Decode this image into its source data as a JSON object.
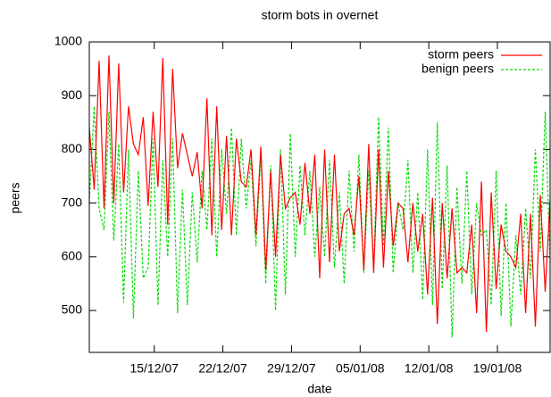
{
  "chart_data": {
    "type": "line",
    "title": "storm bots in overnet",
    "x_label": "date",
    "y_label": "peers",
    "x": [
      0,
      12,
      24,
      36,
      48,
      60,
      72,
      84,
      96,
      108,
      120,
      132,
      144,
      156,
      168,
      180,
      192,
      204,
      216,
      228,
      240,
      252,
      264,
      276,
      288,
      300,
      312,
      324,
      336,
      348,
      360,
      372,
      384,
      396,
      408,
      420,
      432,
      444,
      456,
      468,
      480,
      492,
      504,
      516,
      528,
      540,
      552,
      564,
      576,
      588,
      600,
      612,
      624,
      636,
      648,
      660,
      672,
      684,
      696,
      708,
      720,
      732,
      744,
      756,
      768,
      780,
      792,
      804,
      816,
      828,
      840,
      852,
      864,
      876,
      888,
      900,
      912,
      924,
      936,
      948,
      960,
      972,
      984,
      996,
      1008,
      1020,
      1032,
      1044,
      1056,
      1068,
      1080,
      1092,
      1104,
      1116,
      1128
    ],
    "series": [
      {
        "name": "storm peers",
        "color": "#ff0000",
        "dashed": false,
        "values": [
          840,
          725,
          965,
          690,
          975,
          700,
          960,
          720,
          880,
          810,
          790,
          860,
          695,
          870,
          730,
          970,
          660,
          950,
          765,
          830,
          790,
          750,
          795,
          690,
          895,
          640,
          880,
          650,
          825,
          640,
          820,
          740,
          730,
          800,
          640,
          805,
          575,
          760,
          600,
          790,
          690,
          710,
          720,
          660,
          775,
          680,
          790,
          560,
          800,
          590,
          790,
          610,
          680,
          690,
          640,
          750,
          575,
          810,
          570,
          800,
          580,
          760,
          620,
          700,
          690,
          590,
          700,
          610,
          680,
          530,
          710,
          475,
          700,
          560,
          690,
          570,
          580,
          570,
          660,
          495,
          740,
          460,
          720,
          540,
          660,
          610,
          600,
          580,
          680,
          495,
          680,
          470,
          715,
          535,
          705
        ]
      },
      {
        "name": "benign peers",
        "color": "#00dd00",
        "dashed": true,
        "values": [
          700,
          880,
          690,
          650,
          870,
          630,
          810,
          515,
          800,
          485,
          760,
          560,
          580,
          820,
          510,
          780,
          600,
          820,
          495,
          725,
          510,
          720,
          590,
          760,
          650,
          820,
          600,
          800,
          680,
          840,
          640,
          820,
          690,
          780,
          620,
          790,
          550,
          770,
          500,
          800,
          530,
          830,
          600,
          770,
          640,
          760,
          600,
          730,
          600,
          780,
          580,
          720,
          550,
          760,
          610,
          790,
          570,
          760,
          580,
          860,
          620,
          840,
          570,
          700,
          650,
          780,
          570,
          720,
          520,
          800,
          510,
          850,
          540,
          770,
          450,
          730,
          550,
          760,
          530,
          700,
          640,
          650,
          510,
          760,
          490,
          700,
          470,
          640,
          530,
          690,
          560,
          800,
          610,
          870,
          590
        ]
      }
    ],
    "xlim": [
      0,
      1128
    ],
    "xticks": [
      {
        "value": 159,
        "label": "15/12/07"
      },
      {
        "value": 327,
        "label": "22/12/07"
      },
      {
        "value": 495,
        "label": "29/12/07"
      },
      {
        "value": 663,
        "label": "05/01/08"
      },
      {
        "value": 831,
        "label": "12/01/08"
      },
      {
        "value": 999,
        "label": "19/01/08"
      }
    ],
    "ylim": [
      422,
      1000
    ],
    "yticks": [
      500,
      600,
      700,
      800,
      900,
      1000
    ],
    "legend": "top-right"
  }
}
